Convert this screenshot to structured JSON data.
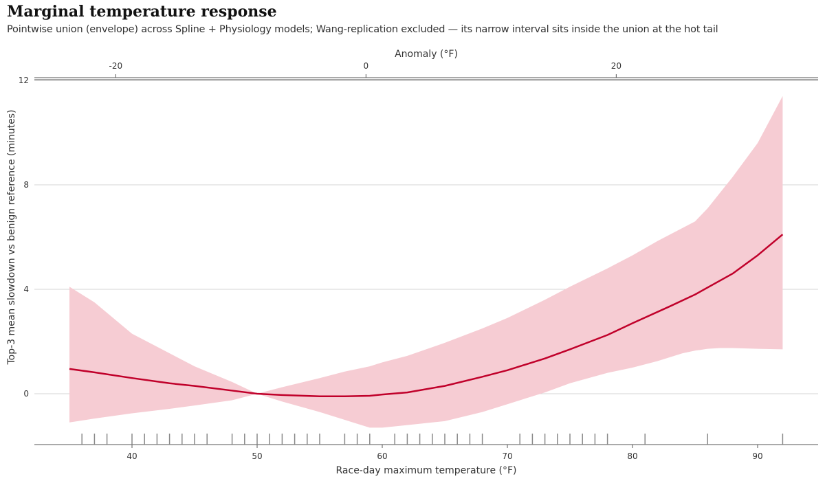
{
  "chart_data": {
    "type": "line",
    "title": "Marginal temperature response",
    "subtitle": "Pointwise union (envelope) across Spline + Physiology models; Wang-replication excluded — its narrow interval sits inside the union at the hot tail",
    "xlabel": "Race-day maximum temperature (°F)",
    "ylabel": "Top-3 mean slowdown vs benign reference (minutes)",
    "secondary_xlabel": "Anomaly (°F)",
    "xlim": [
      32.3,
      96.2
    ],
    "ylim": [
      -2.0,
      12.1
    ],
    "x_ticks": [
      40,
      50,
      60,
      70,
      80,
      90
    ],
    "y_ticks": [
      0,
      4,
      8,
      12
    ],
    "secondary_x_ticks": [
      -20,
      0,
      20
    ],
    "anomaly_reference_temp": 58.7,
    "grid": "horizontal",
    "colors": {
      "line": "#c0002a",
      "band": "#f6ccd3",
      "rug": "#888888"
    },
    "series": [
      {
        "type": "line",
        "x": [
          35,
          37,
          40,
          43,
          45,
          48,
          50,
          52,
          55,
          57,
          59,
          60,
          62,
          65,
          68,
          70,
          73,
          75,
          78,
          80,
          83,
          85,
          88,
          90,
          92
        ],
        "y": [
          0.95,
          0.82,
          0.6,
          0.4,
          0.3,
          0.12,
          0.0,
          -0.05,
          -0.1,
          -0.1,
          -0.08,
          -0.03,
          0.05,
          0.3,
          0.65,
          0.9,
          1.35,
          1.7,
          2.25,
          2.7,
          3.35,
          3.8,
          4.6,
          5.3,
          6.1
        ]
      },
      {
        "type": "band",
        "x": [
          35,
          37,
          40,
          43,
          45,
          48,
          50,
          52,
          55,
          57,
          59,
          60,
          62,
          65,
          68,
          70,
          73,
          75,
          78,
          80,
          82,
          84,
          85,
          86,
          87,
          88,
          90,
          92
        ],
        "upper": [
          4.1,
          3.5,
          2.3,
          1.55,
          1.05,
          0.45,
          0.0,
          0.25,
          0.6,
          0.85,
          1.05,
          1.2,
          1.45,
          1.95,
          2.5,
          2.9,
          3.6,
          4.1,
          4.8,
          5.3,
          5.85,
          6.35,
          6.6,
          7.1,
          7.7,
          8.3,
          9.6,
          11.4
        ],
        "lower": [
          -1.1,
          -0.95,
          -0.75,
          -0.58,
          -0.45,
          -0.25,
          0.0,
          -0.3,
          -0.7,
          -1.0,
          -1.3,
          -1.3,
          -1.2,
          -1.05,
          -0.7,
          -0.4,
          0.05,
          0.4,
          0.8,
          1.0,
          1.25,
          1.55,
          1.65,
          1.72,
          1.75,
          1.75,
          1.72,
          1.7
        ]
      }
    ],
    "rug_x": [
      36,
      37,
      38,
      40,
      41,
      42,
      43,
      44,
      45,
      46,
      48,
      49,
      50,
      51,
      52,
      53,
      54,
      55,
      57,
      58,
      59,
      61,
      62,
      63,
      64,
      65,
      66,
      67,
      68,
      71,
      72,
      73,
      74,
      75,
      76,
      77,
      78,
      81,
      86,
      92
    ]
  }
}
